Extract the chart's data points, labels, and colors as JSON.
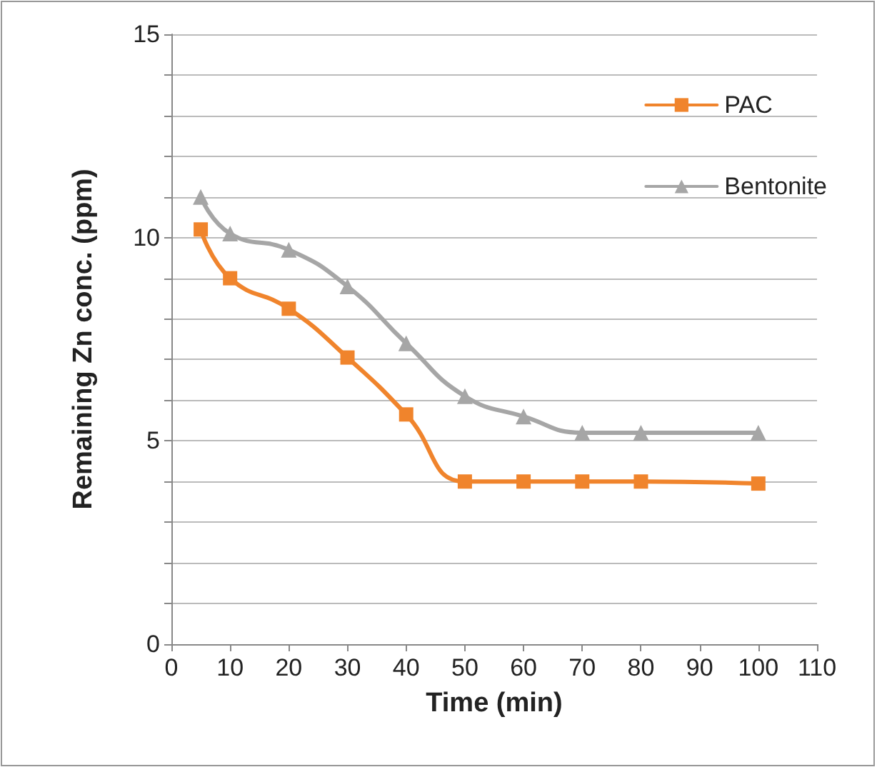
{
  "chart_data": {
    "type": "line",
    "xlabel": "Time (min)",
    "ylabel": "Remaining Zn conc. (ppm)",
    "x": [
      5,
      10,
      20,
      30,
      40,
      50,
      60,
      70,
      80,
      100
    ],
    "series": [
      {
        "name": "PAC",
        "color": "#f0842c",
        "marker": "square",
        "values": [
          10.2,
          9.0,
          8.25,
          7.05,
          5.65,
          4.0,
          4.0,
          4.0,
          4.0,
          3.95
        ]
      },
      {
        "name": "Bentonite",
        "color": "#a6a6a6",
        "marker": "triangle",
        "values": [
          11.0,
          10.1,
          9.7,
          8.8,
          7.4,
          6.1,
          5.6,
          5.2,
          5.2,
          5.2
        ]
      }
    ],
    "xlim": [
      0,
      110
    ],
    "xticks": [
      0,
      10,
      20,
      30,
      40,
      50,
      60,
      70,
      80,
      90,
      100,
      110
    ],
    "ylim": [
      0,
      15
    ],
    "yticks": [
      0,
      {
        "value": 1,
        "label": null
      },
      {
        "value": 2,
        "label": null
      },
      {
        "value": 3,
        "label": null
      },
      {
        "value": 4,
        "label": null
      },
      5,
      {
        "value": 6,
        "label": null
      },
      {
        "value": 7,
        "label": null
      },
      {
        "value": 8,
        "label": null
      },
      {
        "value": 9,
        "label": null
      },
      10,
      {
        "value": 11,
        "label": null
      },
      {
        "value": 12,
        "label": null
      },
      {
        "value": 13,
        "label": null
      },
      {
        "value": 14,
        "label": null
      },
      15
    ],
    "grid": "y",
    "legend": "top right",
    "line_style": "solid"
  }
}
